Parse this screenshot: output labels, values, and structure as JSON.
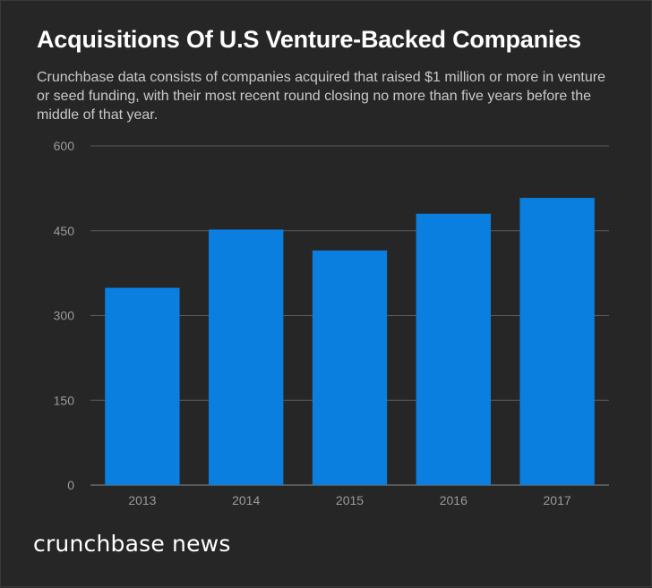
{
  "header": {
    "title": "Acquisitions Of U.S Venture-Backed Companies",
    "subtitle": "Crunchbase data consists of companies acquired that raised $1 million or more in venture or seed funding, with their most recent round closing no more than five years before the middle of that year."
  },
  "footer": {
    "brand": "crunchbase news"
  },
  "colors": {
    "background": "#262626",
    "bar": "#0a7fe0",
    "grid": "#5a5a5a",
    "tick_text": "#9a9a9a"
  },
  "chart_data": {
    "type": "bar",
    "categories": [
      "2013",
      "2014",
      "2015",
      "2016",
      "2017"
    ],
    "values": [
      349,
      452,
      415,
      480,
      508
    ],
    "ylim": [
      0,
      600
    ],
    "yticks": [
      0,
      150,
      300,
      450,
      600
    ],
    "ytick_labels": [
      "0",
      "150",
      "300",
      "450",
      "600"
    ],
    "grid": true,
    "legend": "none"
  }
}
